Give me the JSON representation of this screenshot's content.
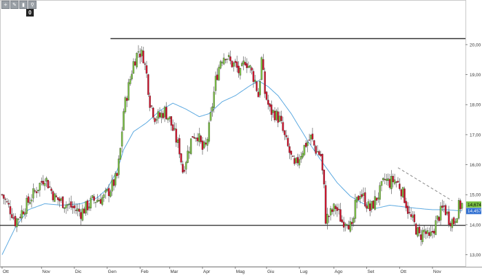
{
  "toolbar": {
    "tools": [
      {
        "icon": "crosshair-icon",
        "glyph": "+"
      },
      {
        "icon": "pencil-icon",
        "glyph": "✎"
      },
      {
        "icon": "trash-icon",
        "glyph": "▮"
      },
      {
        "icon": "zoom-icon",
        "glyph": "⚲"
      }
    ],
    "counter": "0"
  },
  "chart_data": {
    "type": "candlestick",
    "title": "",
    "ylim": [
      12.6,
      20.8
    ],
    "y_ticks": [
      13.0,
      14.0,
      15.0,
      16.0,
      17.0,
      18.0,
      19.0,
      20.0
    ],
    "y_tick_labels": [
      "13,00",
      "14,00",
      "15,00",
      "16,00",
      "17,00",
      "18,00",
      "19,00",
      "20,00"
    ],
    "x_labels": [
      "Ott",
      "Nov",
      "Dic",
      "Gen",
      "Feb",
      "Mar",
      "Apr",
      "Mag",
      "Giu",
      "Lug",
      "Ago",
      "Set",
      "Ott",
      "Nov"
    ],
    "grid": false,
    "colors": {
      "up": "#7bc143",
      "down": "#d0112b",
      "wick": "#444444",
      "ma": "#5aa8e0",
      "level": "#222222",
      "trend": "#888888",
      "tag_green": "#7bc143",
      "tag_blue": "#2f6fd1"
    },
    "levels": [
      {
        "name": "resistance",
        "value": 20.2
      },
      {
        "name": "support",
        "value": 13.98
      }
    ],
    "price_tags": [
      {
        "label": "14,674",
        "value": 14.674,
        "color": "#7bc143"
      },
      {
        "label": "14,457",
        "value": 14.457,
        "color": "#2f6fd1"
      }
    ],
    "anchors": [
      [
        0,
        15.0
      ],
      [
        6,
        14.4
      ],
      [
        8,
        14.1
      ],
      [
        14,
        14.6
      ],
      [
        20,
        15.1
      ],
      [
        26,
        15.6
      ],
      [
        32,
        14.9
      ],
      [
        42,
        14.6
      ],
      [
        48,
        14.4
      ],
      [
        55,
        14.8
      ],
      [
        62,
        14.9
      ],
      [
        66,
        15.2
      ],
      [
        70,
        15.6
      ],
      [
        72,
        16.5
      ],
      [
        74,
        17.8
      ],
      [
        77,
        18.6
      ],
      [
        80,
        19.4
      ],
      [
        83,
        19.8
      ],
      [
        86,
        19.6
      ],
      [
        88,
        19.0
      ],
      [
        90,
        18.1
      ],
      [
        93,
        17.6
      ],
      [
        96,
        17.6
      ],
      [
        99,
        17.8
      ],
      [
        102,
        17.5
      ],
      [
        105,
        17.0
      ],
      [
        108,
        16.5
      ],
      [
        110,
        15.8
      ],
      [
        113,
        16.4
      ],
      [
        116,
        17.0
      ],
      [
        119,
        17.0
      ],
      [
        122,
        16.5
      ],
      [
        124,
        16.6
      ],
      [
        126,
        17.2
      ],
      [
        128,
        18.0
      ],
      [
        130,
        18.8
      ],
      [
        133,
        19.5
      ],
      [
        136,
        19.7
      ],
      [
        139,
        19.4
      ],
      [
        142,
        19.3
      ],
      [
        145,
        19.0
      ],
      [
        148,
        19.5
      ],
      [
        151,
        19.2
      ],
      [
        154,
        18.8
      ],
      [
        156,
        18.3
      ],
      [
        158,
        19.5
      ],
      [
        160,
        18.4
      ],
      [
        163,
        17.8
      ],
      [
        166,
        17.7
      ],
      [
        169,
        17.5
      ],
      [
        172,
        16.9
      ],
      [
        175,
        16.4
      ],
      [
        178,
        15.9
      ],
      [
        182,
        16.4
      ],
      [
        185,
        16.7
      ],
      [
        188,
        16.9
      ],
      [
        191,
        16.5
      ],
      [
        194,
        16.3
      ],
      [
        196,
        15.2
      ],
      [
        197,
        14.2
      ],
      [
        199,
        14.3
      ],
      [
        203,
        14.6
      ],
      [
        207,
        14.1
      ],
      [
        210,
        14.2
      ],
      [
        213,
        13.8
      ],
      [
        215,
        14.6
      ],
      [
        218,
        15.1
      ],
      [
        221,
        14.8
      ],
      [
        224,
        14.5
      ],
      [
        227,
        14.8
      ],
      [
        230,
        15.1
      ],
      [
        233,
        15.5
      ],
      [
        236,
        15.4
      ],
      [
        239,
        15.5
      ],
      [
        242,
        15.3
      ],
      [
        245,
        14.9
      ],
      [
        248,
        14.3
      ],
      [
        251,
        14.0
      ],
      [
        254,
        13.6
      ],
      [
        257,
        13.8
      ],
      [
        260,
        13.5
      ],
      [
        263,
        13.9
      ],
      [
        266,
        14.3
      ],
      [
        269,
        14.6
      ],
      [
        272,
        14.2
      ],
      [
        275,
        14.1
      ],
      [
        278,
        14.6
      ],
      [
        280,
        14.67
      ]
    ],
    "ma_points": [
      [
        0,
        13.0
      ],
      [
        8,
        13.9
      ],
      [
        16,
        14.5
      ],
      [
        26,
        14.7
      ],
      [
        36,
        14.65
      ],
      [
        48,
        14.7
      ],
      [
        58,
        14.9
      ],
      [
        64,
        15.2
      ],
      [
        70,
        15.8
      ],
      [
        74,
        16.5
      ],
      [
        80,
        17.1
      ],
      [
        88,
        17.4
      ],
      [
        96,
        17.8
      ],
      [
        104,
        18.05
      ],
      [
        112,
        17.85
      ],
      [
        120,
        17.6
      ],
      [
        126,
        17.7
      ],
      [
        134,
        18.1
      ],
      [
        142,
        18.3
      ],
      [
        150,
        18.6
      ],
      [
        156,
        18.8
      ],
      [
        162,
        18.6
      ],
      [
        168,
        18.3
      ],
      [
        176,
        17.7
      ],
      [
        186,
        16.8
      ],
      [
        196,
        16.0
      ],
      [
        204,
        15.4
      ],
      [
        212,
        14.95
      ],
      [
        220,
        14.7
      ],
      [
        228,
        14.55
      ],
      [
        236,
        14.65
      ],
      [
        244,
        14.6
      ],
      [
        252,
        14.55
      ],
      [
        262,
        14.5
      ],
      [
        270,
        14.5
      ],
      [
        280,
        14.46
      ]
    ],
    "trendline": [
      [
        241,
        15.9
      ],
      [
        274,
        14.8
      ]
    ],
    "label_positions": [
      0,
      24,
      44,
      64,
      84,
      102,
      122,
      142,
      161,
      181,
      202,
      222,
      242,
      262
    ],
    "n_candles": 281
  }
}
